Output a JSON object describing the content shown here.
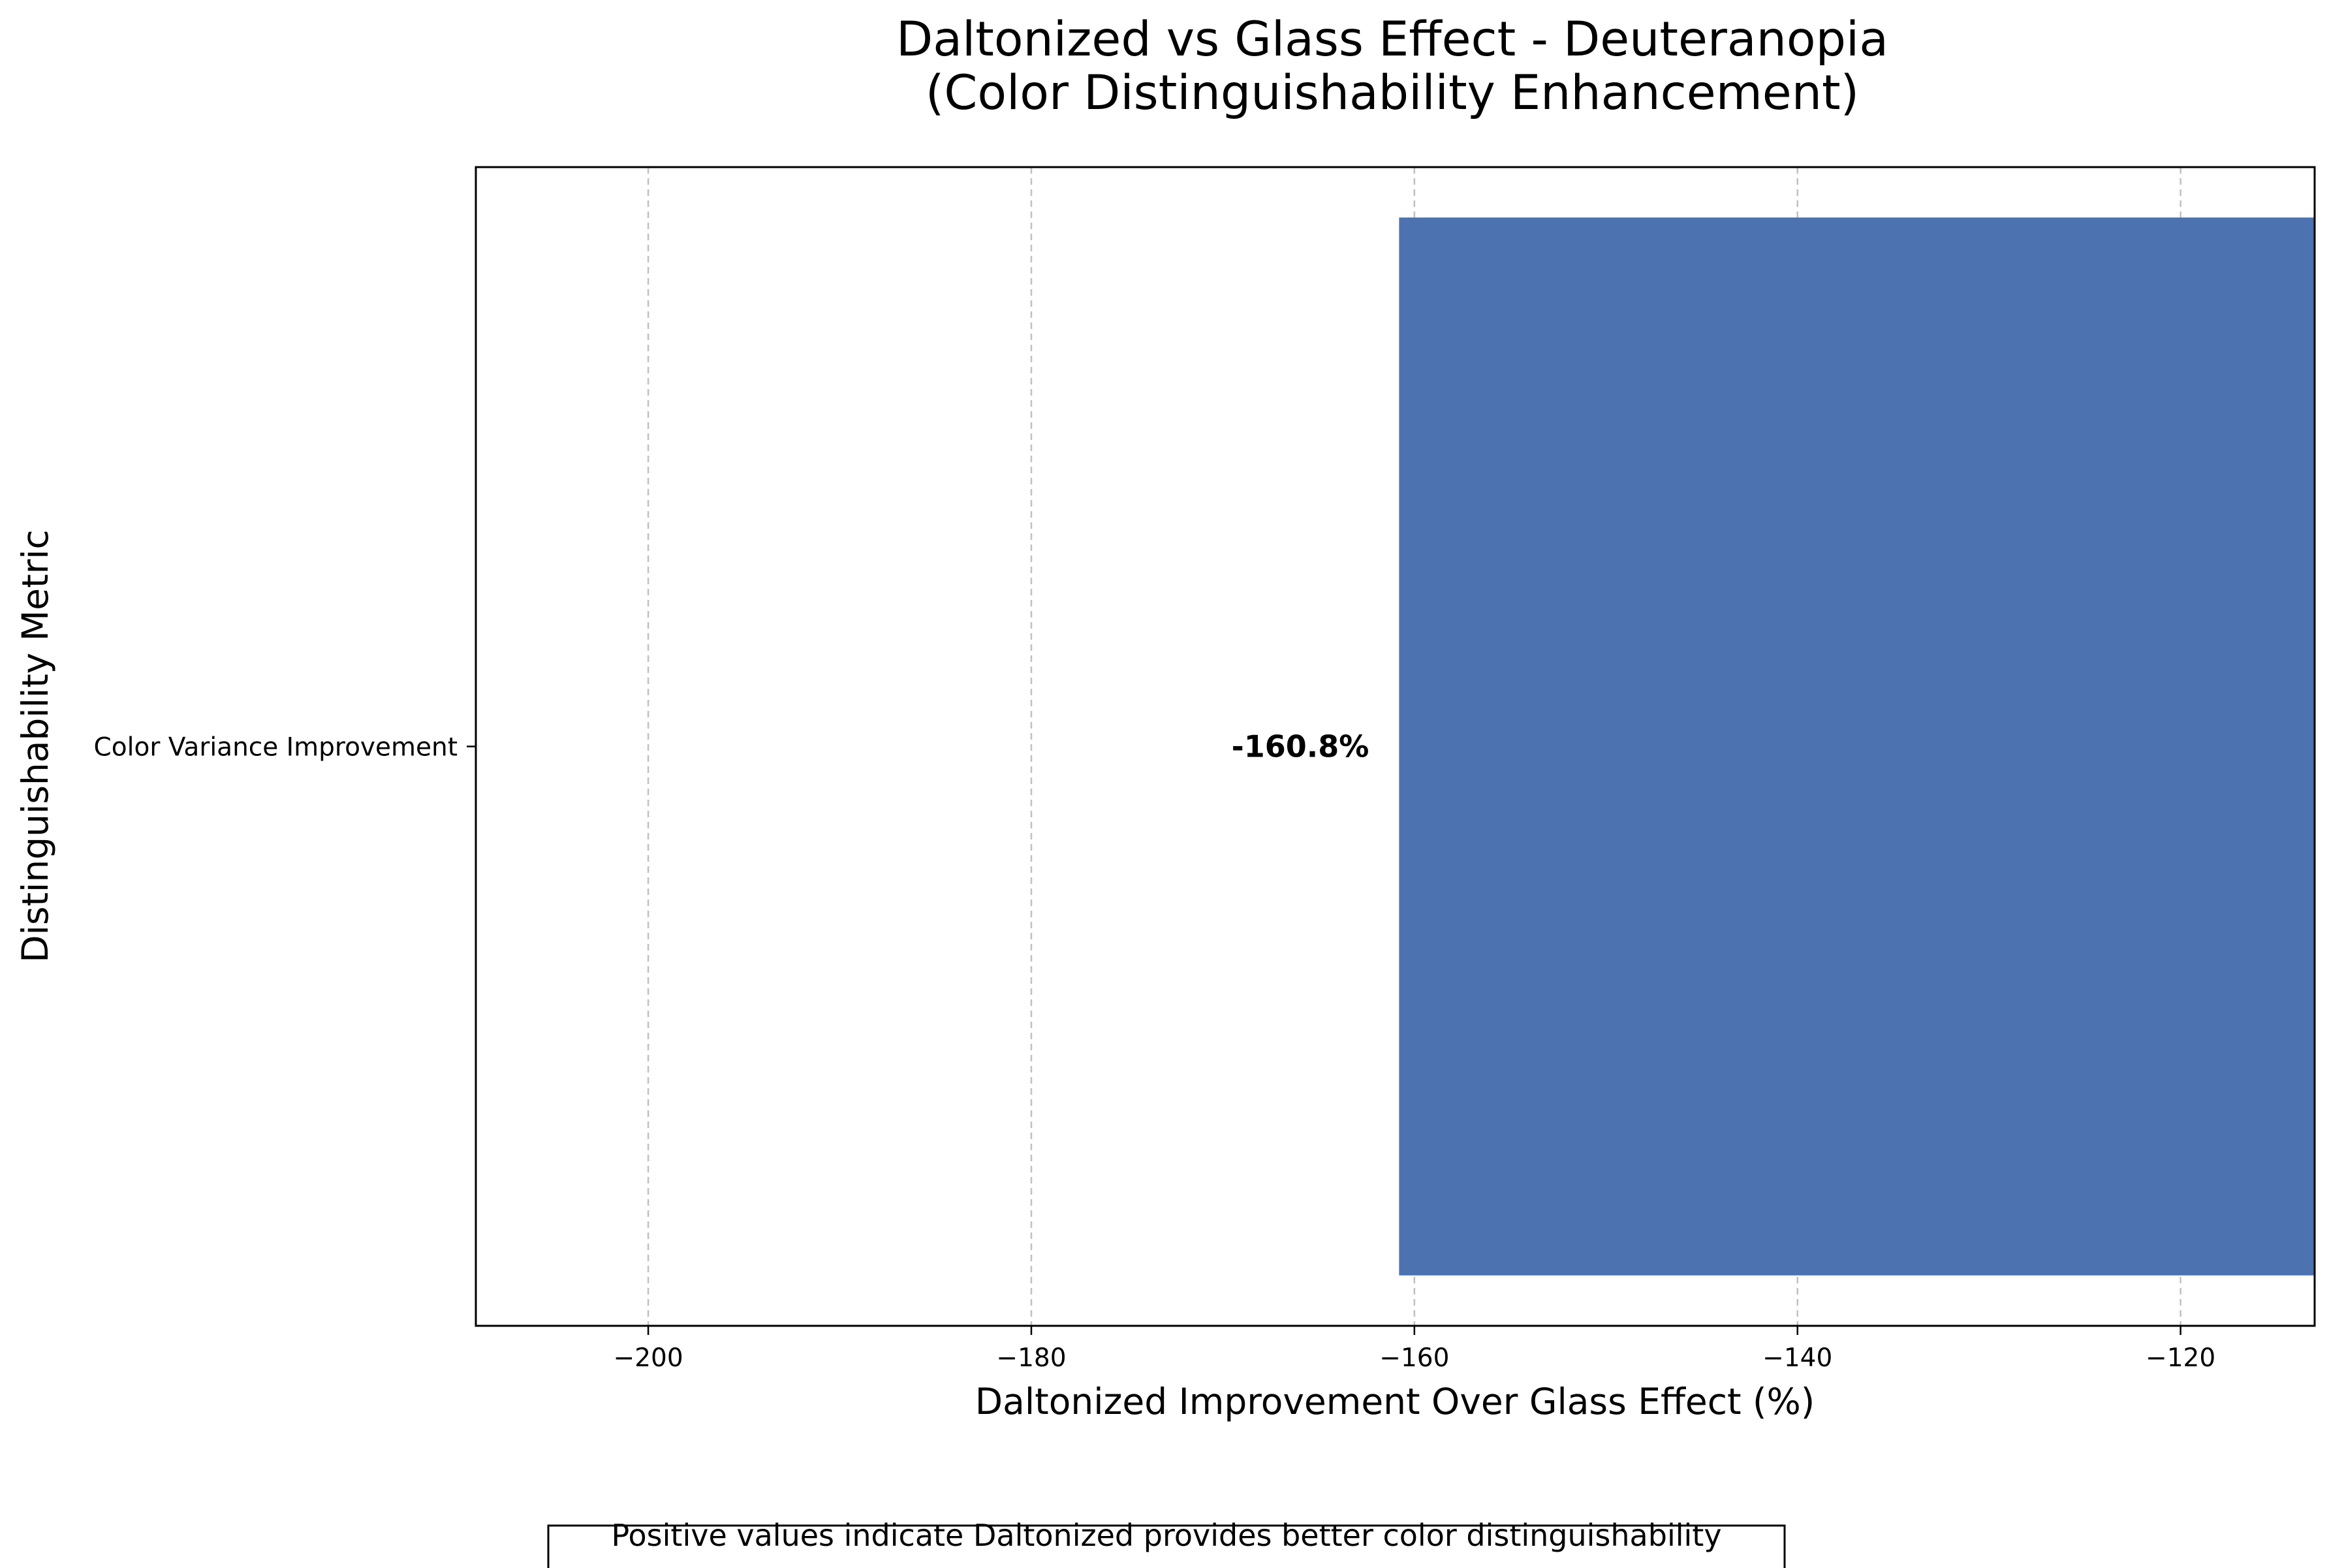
{
  "chart_data": {
    "type": "bar",
    "orientation": "horizontal",
    "title": "Daltonized vs Glass Effect - Deuteranopia",
    "subtitle": "(Color Distinguishability Enhancement)",
    "xlabel": "Daltonized Improvement Over Glass Effect (%)",
    "ylabel": "Distinguishability Metric",
    "categories": [
      "Color Variance Improvement"
    ],
    "values": [
      -160.8
    ],
    "data_labels": [
      "-160.8%"
    ],
    "xlim": [
      -209,
      -113
    ],
    "xticks": [
      -200,
      -180,
      -160,
      -140,
      -120
    ],
    "xtick_labels": [
      "−200",
      "−180",
      "−160",
      "−140",
      "−120"
    ],
    "grid": "x-axis, dashed",
    "bar_color": "#4c72b0",
    "grid_color": "#c0c0c0",
    "legend": "none"
  },
  "note": {
    "text": "Positive values indicate Daltonized provides better color distinguishability"
  }
}
